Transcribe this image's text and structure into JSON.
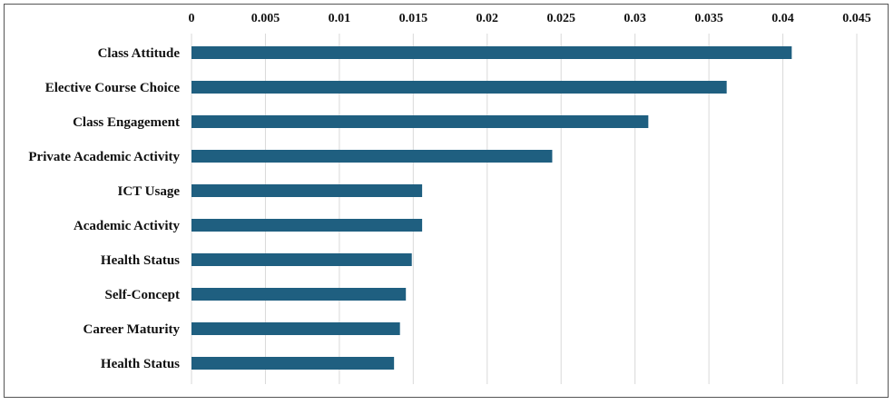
{
  "chart_data": {
    "type": "bar",
    "orientation": "horizontal",
    "title": "",
    "xlabel": "",
    "ylabel": "",
    "categories": [
      "Class Attitude",
      "Elective Course Choice",
      "Class Engagement",
      "Private Academic Activity",
      "ICT Usage",
      "Academic Activity",
      "Health Status",
      "Self-Concept",
      "Career Maturity",
      "Health Status"
    ],
    "values": [
      0.0406,
      0.0362,
      0.0309,
      0.0244,
      0.0156,
      0.0156,
      0.0149,
      0.0145,
      0.0141,
      0.0137
    ],
    "xlim": [
      0,
      0.045
    ],
    "x_ticks": [
      "0",
      "0.005",
      "0.01",
      "0.015",
      "0.02",
      "0.025",
      "0.03",
      "0.035",
      "0.04",
      "0.045"
    ],
    "x_axis_position": "top",
    "grid": true,
    "legend": "none",
    "bar_color": "#1f5f80"
  }
}
